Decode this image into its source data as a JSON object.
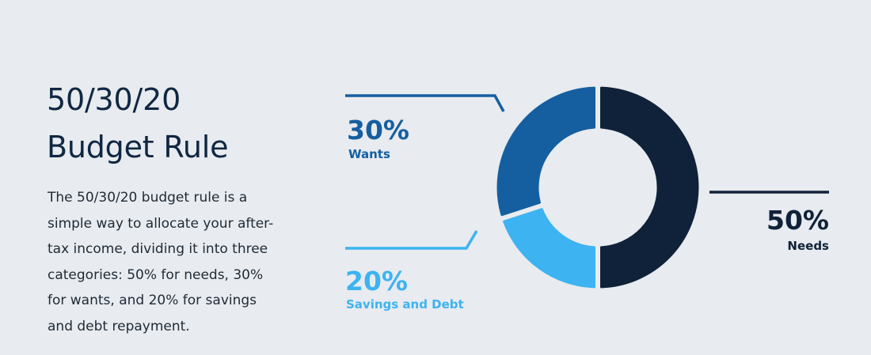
{
  "heading": {
    "line1": "50/30/20",
    "line2": "Budget Rule"
  },
  "description": {
    "lines": [
      "The 50/30/20 budget rule is a",
      "simple way to allocate your after-",
      "tax income, dividing it into three",
      "categories: 50% for needs, 30%",
      "for wants, and 20% for savings",
      "and debt repayment."
    ]
  },
  "colors": {
    "background": "#e8ebef",
    "needs": "#0f2239",
    "wants": "#155fa0",
    "savings": "#3db3f2"
  },
  "chart_data": {
    "type": "pie",
    "donut": true,
    "title": "",
    "slices": [
      {
        "label": "Needs",
        "value": 50,
        "value_label": "50%",
        "color": "#0f2239"
      },
      {
        "label": "Savings and Debt",
        "value": 20,
        "value_label": "20%",
        "color": "#3db3f2"
      },
      {
        "label": "Wants",
        "value": 30,
        "value_label": "30%",
        "color": "#155fa0"
      }
    ]
  }
}
